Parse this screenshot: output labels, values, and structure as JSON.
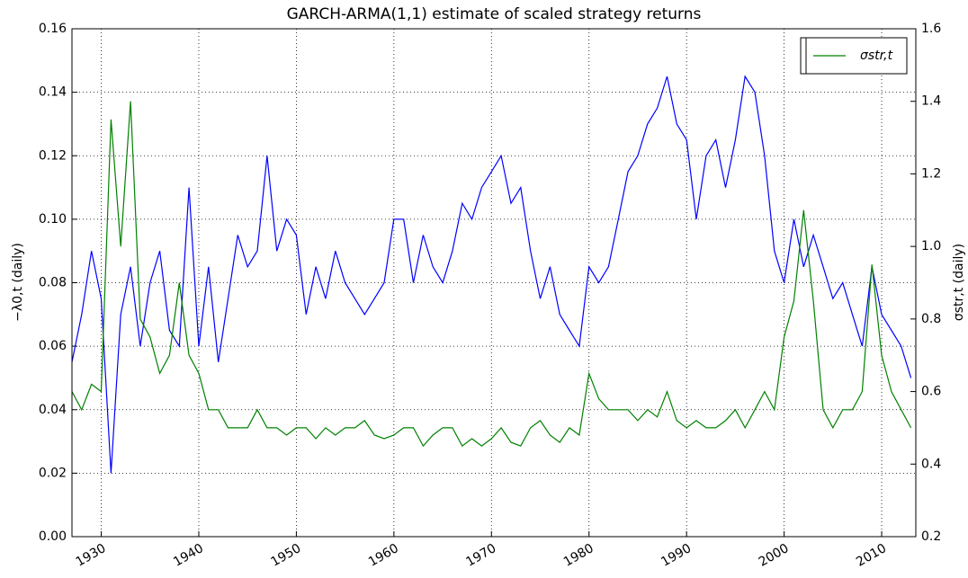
{
  "chart_data": {
    "type": "line",
    "title": "GARCH-ARMA(1,1) estimate of scaled strategy returns",
    "y_label": "−λ0,t (daily)",
    "y2_label": "σstr,t (daily)",
    "x": [
      1927,
      1928,
      1929,
      1930,
      1931,
      1932,
      1933,
      1934,
      1935,
      1936,
      1937,
      1938,
      1939,
      1940,
      1941,
      1942,
      1943,
      1944,
      1945,
      1946,
      1947,
      1948,
      1949,
      1950,
      1951,
      1952,
      1953,
      1954,
      1955,
      1956,
      1957,
      1958,
      1959,
      1960,
      1961,
      1962,
      1963,
      1964,
      1965,
      1966,
      1967,
      1968,
      1969,
      1970,
      1971,
      1972,
      1973,
      1974,
      1975,
      1976,
      1977,
      1978,
      1979,
      1980,
      1981,
      1982,
      1983,
      1984,
      1985,
      1986,
      1987,
      1988,
      1989,
      1990,
      1991,
      1992,
      1993,
      1994,
      1995,
      1996,
      1997,
      1998,
      1999,
      2000,
      2001,
      2002,
      2003,
      2004,
      2005,
      2006,
      2007,
      2008,
      2009,
      2010,
      2011,
      2012,
      2013
    ],
    "series": [
      {
        "color": "#0000ff",
        "values": [
          0.055,
          0.07,
          0.09,
          0.075,
          0.02,
          0.07,
          0.085,
          0.06,
          0.08,
          0.09,
          0.065,
          0.06,
          0.11,
          0.06,
          0.085,
          0.055,
          0.075,
          0.095,
          0.085,
          0.09,
          0.12,
          0.09,
          0.1,
          0.095,
          0.07,
          0.085,
          0.075,
          0.09,
          0.08,
          0.075,
          0.07,
          0.075,
          0.08,
          0.1,
          0.1,
          0.08,
          0.095,
          0.085,
          0.08,
          0.09,
          0.105,
          0.1,
          0.11,
          0.115,
          0.12,
          0.105,
          0.11,
          0.09,
          0.075,
          0.085,
          0.07,
          0.065,
          0.06,
          0.085,
          0.08,
          0.085,
          0.1,
          0.115,
          0.12,
          0.13,
          0.135,
          0.145,
          0.13,
          0.125,
          0.1,
          0.12,
          0.125,
          0.11,
          0.125,
          0.145,
          0.14,
          0.12,
          0.09,
          0.08,
          0.1,
          0.085,
          0.095,
          0.085,
          0.075,
          0.08,
          0.07,
          0.06,
          0.085,
          0.07,
          0.065,
          0.06,
          0.05
        ]
      },
      {
        "name": "σstr,t",
        "color": "#008000",
        "axis": "y2",
        "values": [
          0.6,
          0.55,
          0.62,
          0.6,
          1.35,
          1.0,
          1.4,
          0.8,
          0.75,
          0.65,
          0.7,
          0.9,
          0.7,
          0.65,
          0.55,
          0.55,
          0.5,
          0.5,
          0.5,
          0.55,
          0.5,
          0.5,
          0.48,
          0.5,
          0.5,
          0.47,
          0.5,
          0.48,
          0.5,
          0.5,
          0.52,
          0.48,
          0.47,
          0.48,
          0.5,
          0.5,
          0.45,
          0.48,
          0.5,
          0.5,
          0.45,
          0.47,
          0.45,
          0.47,
          0.5,
          0.46,
          0.45,
          0.5,
          0.52,
          0.48,
          0.46,
          0.5,
          0.48,
          0.65,
          0.58,
          0.55,
          0.55,
          0.55,
          0.52,
          0.55,
          0.53,
          0.6,
          0.52,
          0.5,
          0.52,
          0.5,
          0.5,
          0.52,
          0.55,
          0.5,
          0.55,
          0.6,
          0.55,
          0.75,
          0.85,
          1.1,
          0.85,
          0.55,
          0.5,
          0.55,
          0.55,
          0.6,
          0.95,
          0.7,
          0.6,
          0.55,
          0.5
        ]
      }
    ],
    "xlim": [
      1927,
      2013.5
    ],
    "xticks": [
      1930,
      1940,
      1950,
      1960,
      1970,
      1980,
      1990,
      2000,
      2010
    ],
    "ylim": [
      0,
      0.16
    ],
    "yticks": [
      {
        "value": 0,
        "label": "0.00"
      },
      {
        "value": 0.02,
        "label": "0.02"
      },
      {
        "value": 0.04,
        "label": "0.04"
      },
      {
        "value": 0.06,
        "label": "0.06"
      },
      {
        "value": 0.08,
        "label": "0.08"
      },
      {
        "value": 0.1,
        "label": "0.10"
      },
      {
        "value": 0.12,
        "label": "0.12"
      },
      {
        "value": 0.14,
        "label": "0.14"
      },
      {
        "value": 0.16,
        "label": "0.16"
      }
    ],
    "y2lim": [
      0.2,
      1.6
    ],
    "y2ticks": [
      0.2,
      0.4,
      0.6,
      0.8,
      {
        "value": 1,
        "label": "1.0"
      },
      1.2,
      1.4,
      1.6
    ],
    "grid": true,
    "legend": "upper right"
  }
}
